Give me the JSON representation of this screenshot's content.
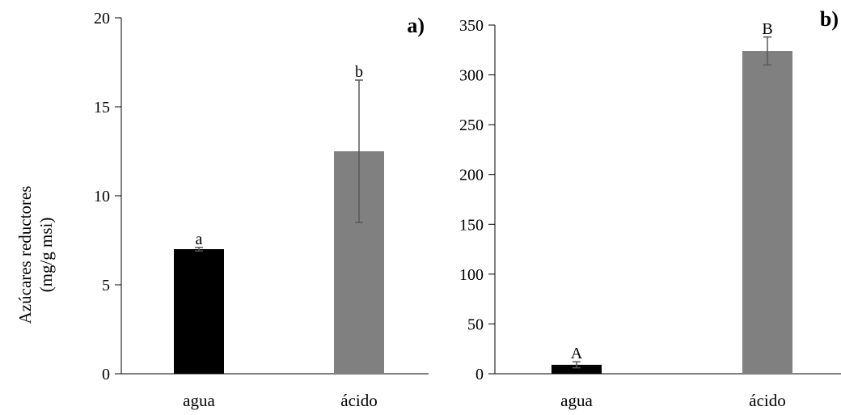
{
  "chart_data": [
    {
      "type": "bar",
      "panel_label": "a)",
      "categories": [
        "agua",
        "ácido"
      ],
      "values": [
        7.0,
        12.5
      ],
      "error": [
        0.1,
        4.0
      ],
      "significance_labels": [
        "a",
        "b"
      ],
      "bar_colors": [
        "#000000",
        "#808080"
      ],
      "ylabel": [
        "Azúcares reductores",
        "(mg/g msi)"
      ],
      "xlabel": "",
      "ylim": [
        0,
        20
      ],
      "yticks": [
        0,
        5,
        10,
        15,
        20
      ],
      "grid": false,
      "legend": "none"
    },
    {
      "type": "bar",
      "panel_label": "b)",
      "categories": [
        "agua",
        "ácido"
      ],
      "values": [
        9,
        324
      ],
      "error": [
        3,
        14
      ],
      "significance_labels": [
        "A",
        "B"
      ],
      "bar_colors": [
        "#000000",
        "#808080"
      ],
      "ylabel": "",
      "xlabel": "",
      "ylim": [
        0,
        350
      ],
      "yticks": [
        0,
        50,
        100,
        150,
        200,
        250,
        300,
        350
      ],
      "grid": false,
      "legend": "none"
    }
  ]
}
